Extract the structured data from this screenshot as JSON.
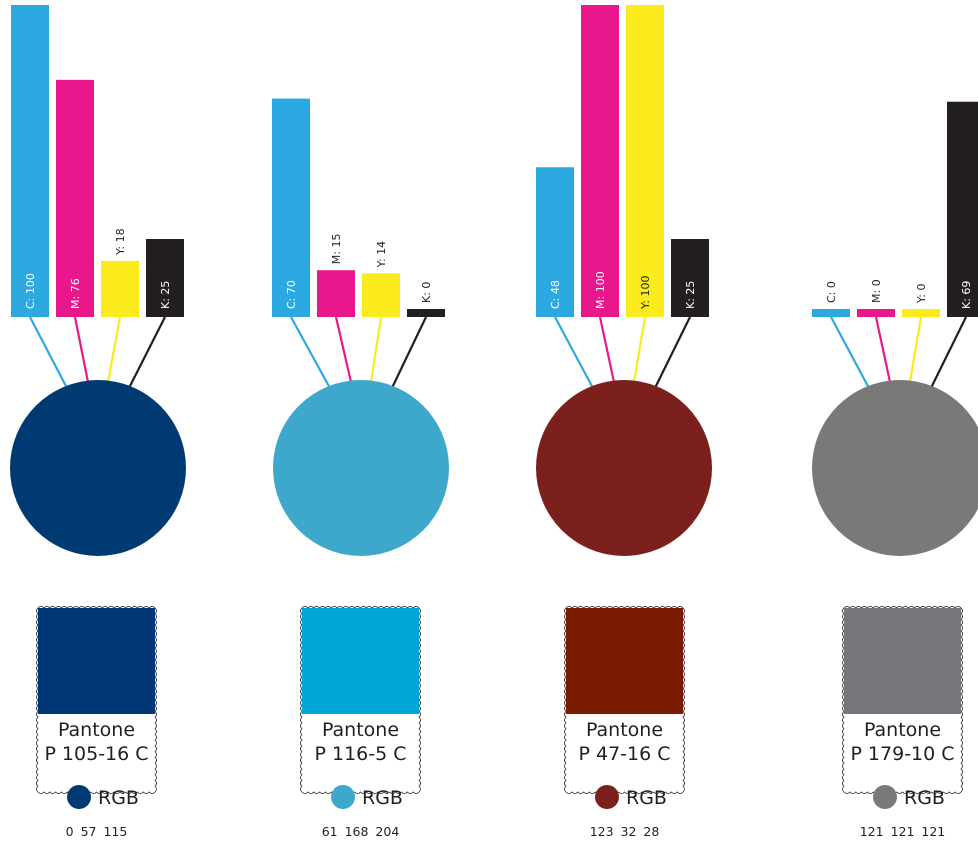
{
  "chart_data": {
    "type": "bar",
    "channel_colors": {
      "C": "#2da9e1",
      "M": "#e8188c",
      "Y": "#fbea1c",
      "K": "#231f20"
    },
    "value_range": [
      0,
      100
    ],
    "colors": [
      {
        "pantone_label": "Pantone",
        "pantone_code": "P 105-16 C",
        "rgb_label": "RGB",
        "rgb_values": "0 57 115",
        "circle_color": "#003a72",
        "swatch_color": "#003876",
        "cmyk": [
          {
            "channel": "C",
            "label": "C: 100",
            "value": 100
          },
          {
            "channel": "M",
            "label": "M: 76",
            "value": 76
          },
          {
            "channel": "Y",
            "label": "Y: 18",
            "value": 18
          },
          {
            "channel": "K",
            "label": "K: 25",
            "value": 25
          }
        ]
      },
      {
        "pantone_label": "Pantone",
        "pantone_code": "P 116-5 C",
        "rgb_label": "RGB",
        "rgb_values": "61 168 204",
        "circle_color": "#3da8cc",
        "swatch_color": "#00a6d6",
        "cmyk": [
          {
            "channel": "C",
            "label": "C: 70",
            "value": 70
          },
          {
            "channel": "M",
            "label": "M: 15",
            "value": 15
          },
          {
            "channel": "Y",
            "label": "Y: 14",
            "value": 14
          },
          {
            "channel": "K",
            "label": "K: 0",
            "value": 0
          }
        ]
      },
      {
        "pantone_label": "Pantone",
        "pantone_code": "P 47-16 C",
        "rgb_label": "RGB",
        "rgb_values": "123 32 28",
        "circle_color": "#7b201c",
        "swatch_color": "#7a1a00",
        "cmyk": [
          {
            "channel": "C",
            "label": "C: 48",
            "value": 48
          },
          {
            "channel": "M",
            "label": "M: 100",
            "value": 100
          },
          {
            "channel": "Y",
            "label": "Y: 100",
            "value": 100
          },
          {
            "channel": "K",
            "label": "K: 25",
            "value": 25
          }
        ]
      },
      {
        "pantone_label": "Pantone",
        "pantone_code": "P 179-10 C",
        "rgb_label": "RGB",
        "rgb_values": "121 121 121",
        "circle_color": "#797979",
        "swatch_color": "#76777a",
        "cmyk": [
          {
            "channel": "C",
            "label": "C: 0",
            "value": 0
          },
          {
            "channel": "M",
            "label": "M: 0",
            "value": 0
          },
          {
            "channel": "Y",
            "label": "Y: 0",
            "value": 0
          },
          {
            "channel": "K",
            "label": "K: 69",
            "value": 69
          }
        ]
      }
    ]
  }
}
